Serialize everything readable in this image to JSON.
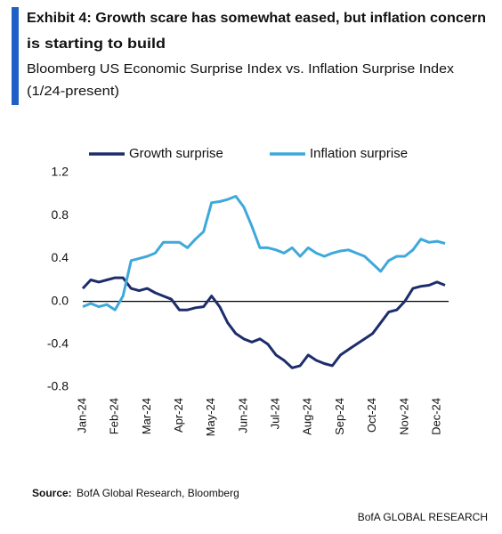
{
  "chart_data": {
    "type": "line",
    "title": [
      "Exhibit 4: Growth scare has somewhat eased, but inflation concern",
      "is starting to build"
    ],
    "subtitle": [
      "Bloomberg US Economic Surprise Index vs. Inflation Surprise Index",
      "(1/24-present)"
    ],
    "categories": [
      "Jan-24",
      null,
      null,
      null,
      "Feb-24",
      null,
      null,
      null,
      "Mar-24",
      null,
      null,
      null,
      "Apr-24",
      null,
      null,
      null,
      "May-24",
      null,
      null,
      null,
      "Jun-24",
      null,
      null,
      null,
      "Jul-24",
      null,
      null,
      null,
      "Aug-24",
      null,
      null,
      null,
      "Sep-24",
      null,
      null,
      null,
      "Oct-24",
      null,
      null,
      null,
      "Nov-24",
      null,
      null,
      null,
      "Dec-24",
      null
    ],
    "series": [
      {
        "name": "Growth surprise",
        "color": "#1d2d6b",
        "values": [
          0.12,
          0.2,
          0.18,
          0.2,
          0.22,
          0.22,
          0.12,
          0.1,
          0.12,
          0.08,
          0.05,
          0.02,
          -0.08,
          -0.08,
          -0.06,
          -0.05,
          0.05,
          -0.05,
          -0.2,
          -0.3,
          -0.35,
          -0.38,
          -0.35,
          -0.4,
          -0.5,
          -0.55,
          -0.62,
          -0.6,
          -0.5,
          -0.55,
          -0.58,
          -0.6,
          -0.5,
          -0.45,
          -0.4,
          -0.35,
          -0.3,
          -0.2,
          -0.1,
          -0.08,
          0.0,
          0.12,
          0.14,
          0.15,
          0.18,
          0.15
        ]
      },
      {
        "name": "Inflation surprise",
        "color": "#3fa8db",
        "values": [
          -0.05,
          -0.02,
          -0.05,
          -0.03,
          -0.08,
          0.05,
          0.38,
          0.4,
          0.42,
          0.45,
          0.55,
          0.55,
          0.55,
          0.5,
          0.58,
          0.65,
          0.92,
          0.93,
          0.95,
          0.98,
          0.88,
          0.7,
          0.5,
          0.5,
          0.48,
          0.45,
          0.5,
          0.42,
          0.5,
          0.45,
          0.42,
          0.45,
          0.47,
          0.48,
          0.45,
          0.42,
          0.35,
          0.28,
          0.38,
          0.42,
          0.42,
          0.48,
          0.58,
          0.55,
          0.56,
          0.54
        ]
      }
    ],
    "ylim": [
      -0.8,
      1.2
    ],
    "yticks": [
      1.2,
      0.8,
      0.4,
      {
        "value": 0,
        "label": "0.0"
      },
      -0.4,
      -0.8
    ],
    "zero_line": true,
    "legend": "top",
    "source_label": "Source:",
    "source": "BofA Global Research, Bloomberg",
    "footer": "BofA GLOBAL RESEARCH"
  }
}
